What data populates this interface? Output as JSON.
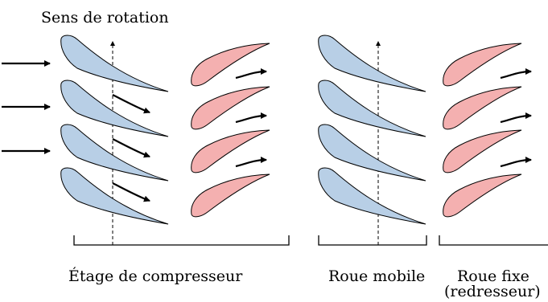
{
  "labels": {
    "rotation": "Sens de rotation",
    "stage": "Étage de compresseur",
    "rotor": "Roue mobile",
    "stator_line1": "Roue fixe",
    "stator_line2": "(redresseur)"
  },
  "colors": {
    "rotor_fill": "#b8cfe6",
    "stator_fill": "#f4b0b0",
    "stroke": "#000000"
  }
}
